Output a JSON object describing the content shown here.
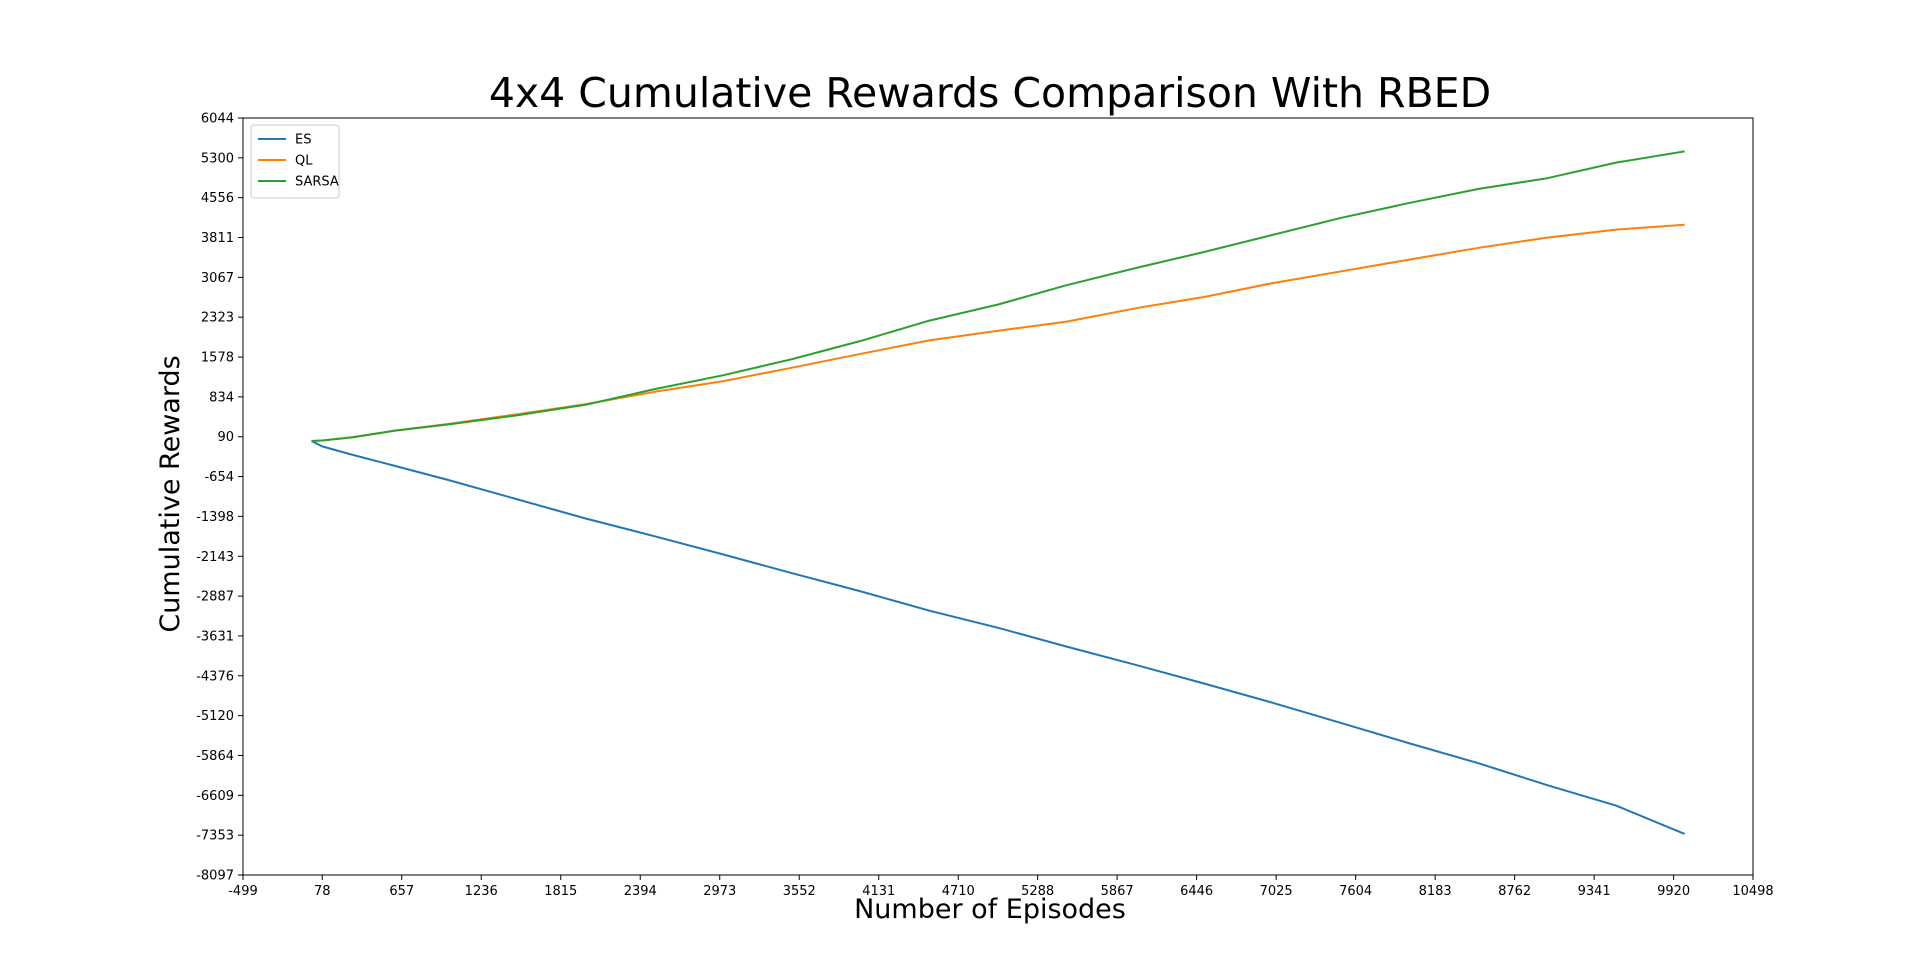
{
  "chart_data": {
    "type": "line",
    "title": "4x4 Cumulative Rewards Comparison With RBED",
    "xlabel": "Number of Episodes",
    "ylabel": "Cumulative Rewards",
    "xlim": [
      -499,
      10498
    ],
    "ylim": [
      -8097,
      6044
    ],
    "x_ticks": [
      -499,
      78,
      657,
      1236,
      1815,
      2394,
      2973,
      3552,
      4131,
      4710,
      5288,
      5867,
      6446,
      7025,
      7604,
      8183,
      8762,
      9341,
      9920,
      10498
    ],
    "y_ticks": [
      6044,
      5300,
      4556,
      3811,
      3067,
      2323,
      1578,
      834,
      90,
      -654,
      -1398,
      -2143,
      -2887,
      -3631,
      -4376,
      -5120,
      -5864,
      -6609,
      -7353,
      -8097
    ],
    "grid": false,
    "legend_position": "upper left",
    "series": [
      {
        "name": "ES",
        "color": "#1f77b4",
        "x": [
          0,
          78,
          300,
          600,
          1000,
          1500,
          2000,
          2500,
          3000,
          3500,
          4000,
          4500,
          5000,
          5500,
          6000,
          6500,
          7000,
          7500,
          8000,
          8500,
          9000,
          9500,
          10000
        ],
        "y": [
          10,
          -90,
          -250,
          -450,
          -720,
          -1080,
          -1440,
          -1770,
          -2110,
          -2460,
          -2800,
          -3160,
          -3480,
          -3830,
          -4170,
          -4520,
          -4880,
          -5260,
          -5640,
          -6010,
          -6420,
          -6800,
          -7330
        ]
      },
      {
        "name": "QL",
        "color": "#ff7f0e",
        "x": [
          0,
          78,
          300,
          600,
          1000,
          1500,
          2000,
          2500,
          3000,
          3500,
          4000,
          4500,
          5000,
          5500,
          6000,
          6500,
          7000,
          7500,
          8000,
          8500,
          9000,
          9500,
          10000
        ],
        "y": [
          10,
          20,
          80,
          200,
          330,
          510,
          700,
          930,
          1130,
          1380,
          1640,
          1890,
          2070,
          2240,
          2490,
          2700,
          2960,
          3180,
          3400,
          3620,
          3810,
          3960,
          4050
        ]
      },
      {
        "name": "SARSA",
        "color": "#2ca02c",
        "x": [
          0,
          78,
          300,
          600,
          1000,
          1500,
          2000,
          2500,
          3000,
          3500,
          4000,
          4500,
          5000,
          5500,
          6000,
          6500,
          7000,
          7500,
          8000,
          8500,
          9000,
          9500,
          10000
        ],
        "y": [
          10,
          20,
          80,
          200,
          320,
          490,
          690,
          980,
          1240,
          1540,
          1880,
          2260,
          2560,
          2920,
          3240,
          3540,
          3860,
          4180,
          4460,
          4720,
          4920,
          5210,
          5420
        ]
      }
    ]
  }
}
